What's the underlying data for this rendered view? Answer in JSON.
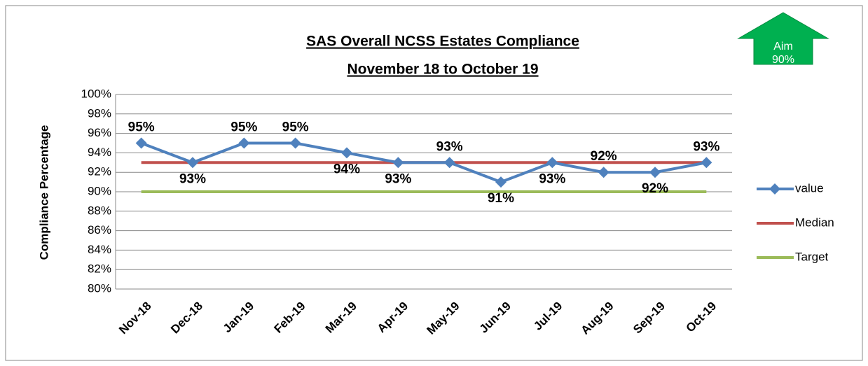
{
  "chart_data": {
    "type": "line",
    "title": "SAS Overall NCSS Estates Compliance",
    "subtitle": "November  18 to October 19",
    "annotation": [
      "Aim",
      "90%"
    ],
    "y_label": "Compliance Percentage",
    "categories": [
      "Nov-18",
      "Dec-18",
      "Jan-19",
      "Feb-19",
      "Mar-19",
      "Apr-19",
      "May-19",
      "Jun-19",
      "Jul-19",
      "Aug-19",
      "Sep-19",
      "Oct-19"
    ],
    "series": [
      {
        "name": "value",
        "color": "#4f81bd",
        "values": [
          95,
          93,
          95,
          95,
          94,
          93,
          93,
          91,
          93,
          92,
          92,
          93
        ],
        "value_labels": [
          "95%",
          "93%",
          "95%",
          "95%",
          "94%",
          "93%",
          "93%",
          "91%",
          "93%",
          "92%",
          "92%",
          "93%"
        ],
        "markers": true
      },
      {
        "name": "Median",
        "color": "#c0504d",
        "values": [
          93,
          93,
          93,
          93,
          93,
          93,
          93,
          93,
          93,
          93,
          93,
          93
        ]
      },
      {
        "name": "Target",
        "color": "#9bbb59",
        "values": [
          90,
          90,
          90,
          90,
          90,
          90,
          90,
          90,
          90,
          90,
          90,
          90
        ]
      }
    ],
    "ylim": [
      80,
      100
    ],
    "yticks": [
      {
        "value": 80,
        "label": "80%"
      },
      {
        "value": 82,
        "label": "82%"
      },
      {
        "value": 84,
        "label": "84%"
      },
      {
        "value": 86,
        "label": "86%"
      },
      {
        "value": 88,
        "label": "88%"
      },
      {
        "value": 90,
        "label": "90%"
      },
      {
        "value": 92,
        "label": "92%"
      },
      {
        "value": 94,
        "label": "94%"
      },
      {
        "value": 96,
        "label": "96%"
      },
      {
        "value": 98,
        "label": "98%"
      },
      {
        "value": 100,
        "label": "100%"
      }
    ],
    "grid": true,
    "legend": "right"
  }
}
